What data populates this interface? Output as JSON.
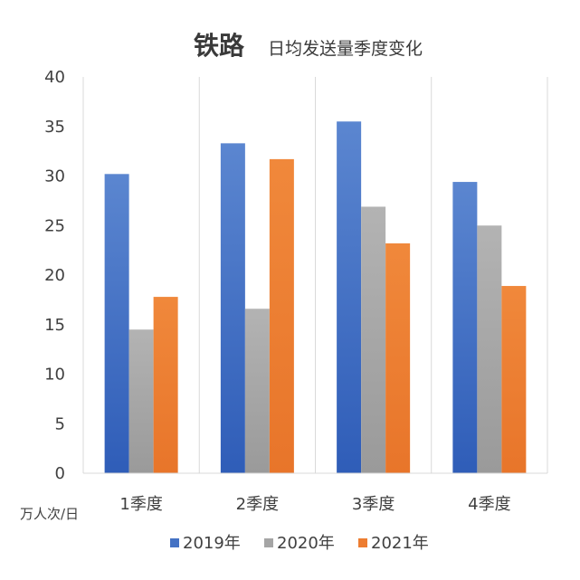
{
  "chart_data": {
    "type": "bar",
    "title_main": "铁路",
    "title_sub": "日均发送量季度变化",
    "ylabel": "万人次/日",
    "categories": [
      "1季度",
      "2季度",
      "3季度",
      "4季度"
    ],
    "ylim": [
      0,
      40
    ],
    "yticks": [
      0,
      5,
      10,
      15,
      20,
      25,
      30,
      35,
      40
    ],
    "grid": "vertical",
    "legend_position": "bottom",
    "series": [
      {
        "name": "2019年",
        "color": "#4472c4",
        "values": [
          30.2,
          33.3,
          35.5,
          29.4
        ]
      },
      {
        "name": "2020年",
        "color": "#a5a5a5",
        "values": [
          14.5,
          16.6,
          26.9,
          25.0
        ]
      },
      {
        "name": "2021年",
        "color": "#ed7d31",
        "values": [
          17.8,
          31.7,
          23.2,
          18.9
        ]
      }
    ]
  }
}
